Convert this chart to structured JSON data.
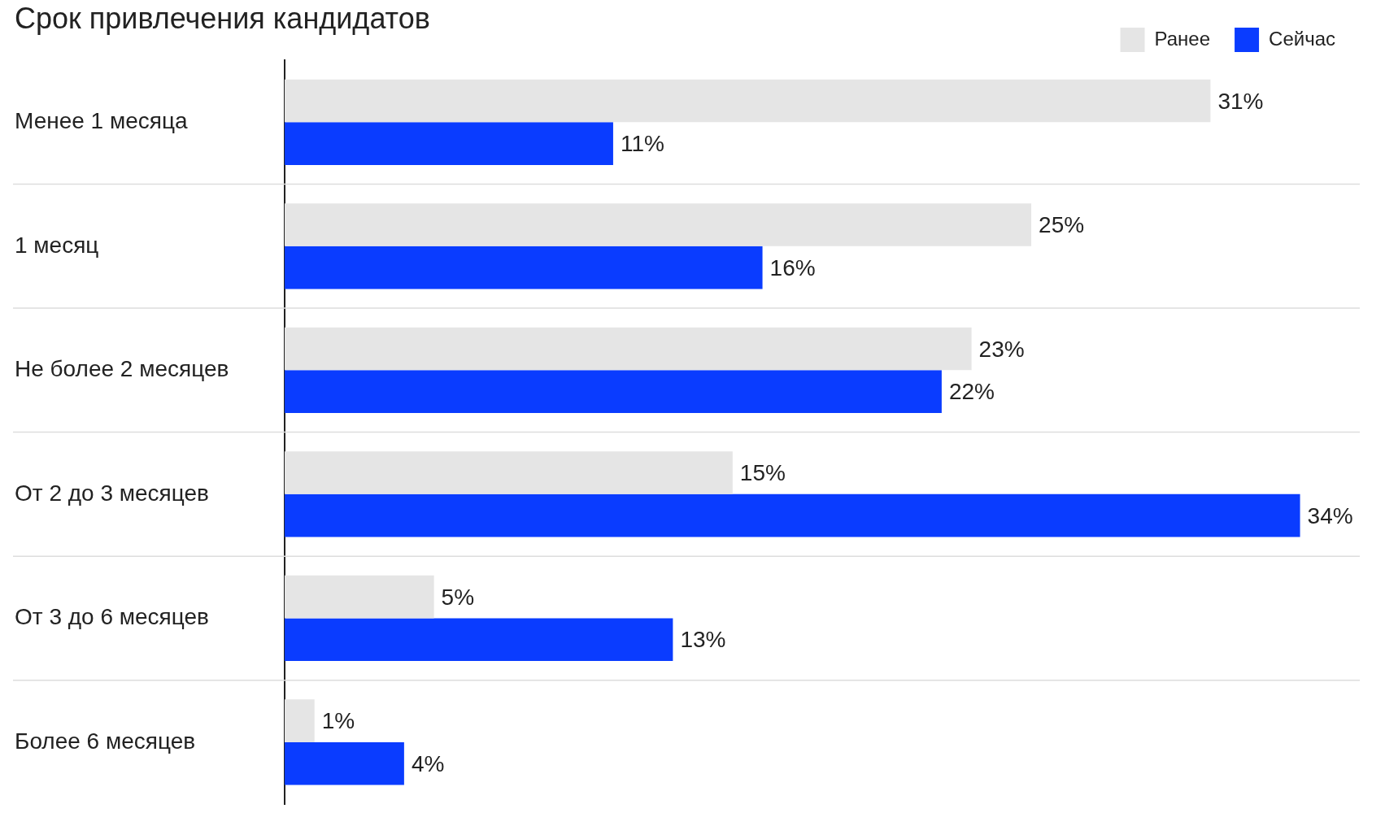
{
  "chart_data": {
    "type": "bar",
    "orientation": "horizontal",
    "title": "Срок привлечения кандидатов",
    "categories": [
      "Менее 1 месяца",
      "1 месяц",
      "Не более 2 месяцев",
      "От 2 до 3 месяцев",
      "От 3 до 6 месяцев",
      "Более 6 месяцев"
    ],
    "series": [
      {
        "name": "Ранее",
        "color": "#e5e5e5",
        "values": [
          31,
          25,
          23,
          15,
          5,
          1
        ],
        "value_labels": [
          "31%",
          "25%",
          "23%",
          "15%",
          "5%",
          "1%"
        ]
      },
      {
        "name": "Сейчас",
        "color": "#0a3cff",
        "values": [
          11,
          16,
          22,
          34,
          13,
          4
        ],
        "value_labels": [
          "11%",
          "16%",
          "22%",
          "34%",
          "13%",
          "4%"
        ]
      }
    ],
    "xlim": [
      0,
      36
    ],
    "tick_labels": "y",
    "grid": "y",
    "legend": "top right"
  }
}
